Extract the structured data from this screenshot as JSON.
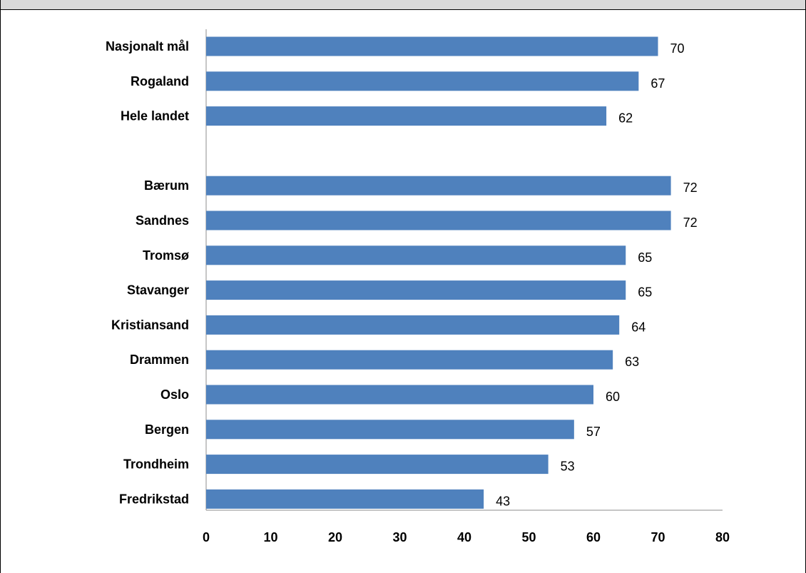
{
  "chart_data": {
    "type": "bar",
    "orientation": "horizontal",
    "categories": [
      "Nasjonalt mål",
      "Rogaland",
      "Hele landet",
      "",
      "Bærum",
      "Sandnes",
      "Tromsø",
      "Stavanger",
      "Kristiansand",
      "Drammen",
      "Oslo",
      "Bergen",
      "Trondheim",
      "Fredrikstad"
    ],
    "values": [
      70,
      67,
      62,
      null,
      72,
      72,
      65,
      65,
      64,
      63,
      60,
      57,
      53,
      43
    ],
    "xlim": [
      0,
      80
    ],
    "xticks": [
      0,
      10,
      20,
      30,
      40,
      50,
      60,
      70,
      80
    ],
    "bar_color": "#4f81bd",
    "grid": false,
    "legend": "none",
    "title": "",
    "xlabel": "",
    "ylabel": ""
  }
}
